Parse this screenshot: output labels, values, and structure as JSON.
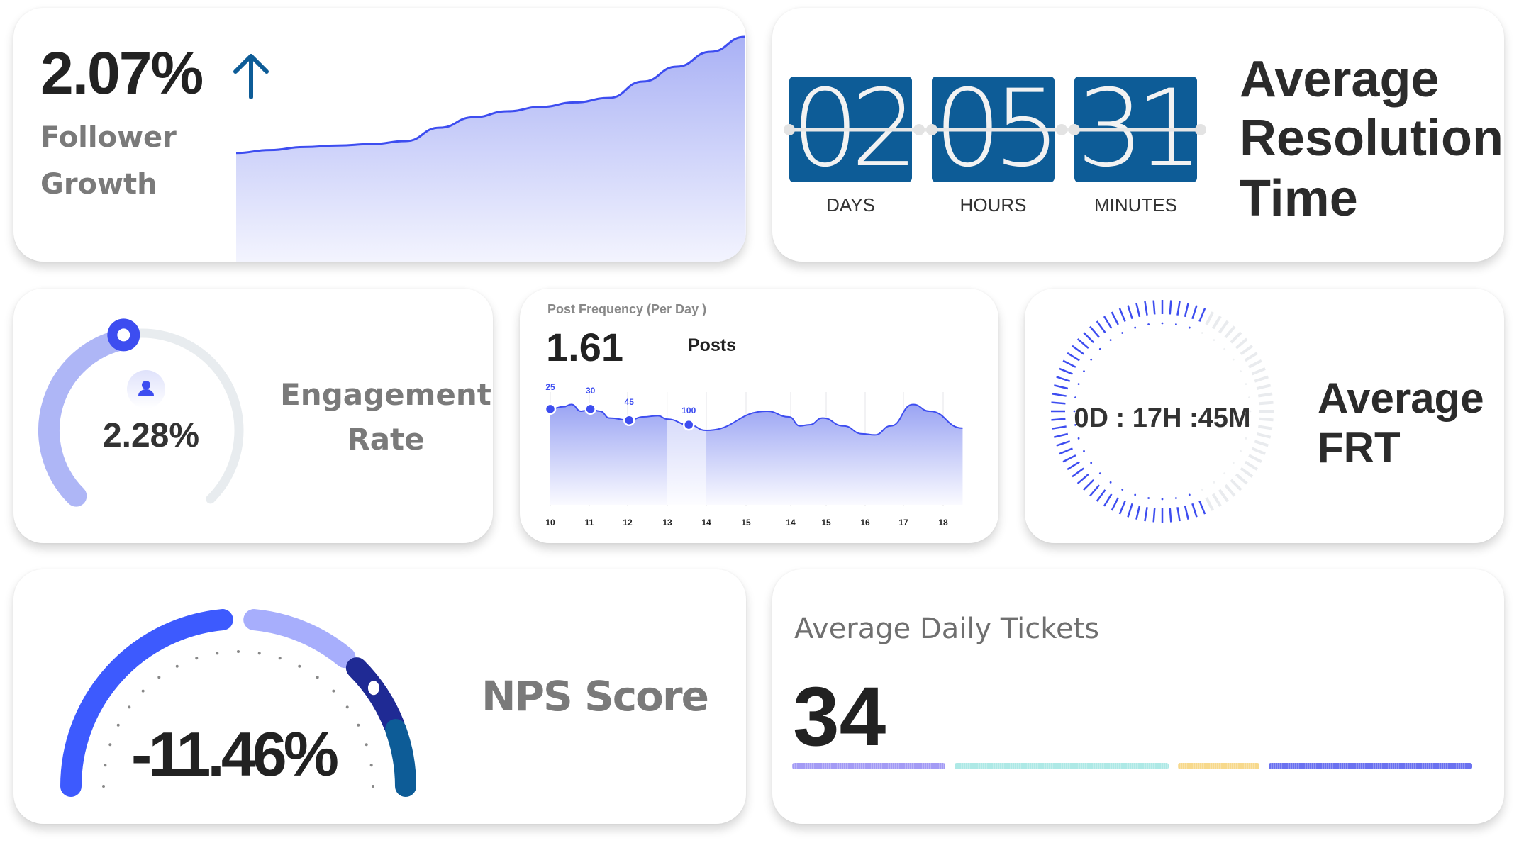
{
  "follower_growth": {
    "value": "2.07%",
    "trend_icon": "arrow-up-icon",
    "label_line1": "Follower",
    "label_line2": "Growth",
    "color": "#3d4df0",
    "trend": [
      12,
      14,
      16,
      17,
      18,
      20,
      29,
      36,
      40,
      43,
      46,
      49,
      60,
      70,
      80,
      90
    ]
  },
  "resolution_time": {
    "title_lines": [
      "Average",
      "Resolution",
      "Time"
    ],
    "units": [
      {
        "value": "02",
        "label": "DAYS"
      },
      {
        "value": "05",
        "label": "HOURS"
      },
      {
        "value": "31",
        "label": "MINUTES"
      }
    ],
    "box_color": "#0d5c97"
  },
  "engagement": {
    "value": "2.28%",
    "label_line1": "Engagement",
    "label_line2": "Rate",
    "icon": "user-icon",
    "progress": 0.46,
    "color": "#3d4df0"
  },
  "post_frequency": {
    "title": "Post Frequency (Per Day )",
    "value": "1.61",
    "unit": "Posts",
    "chart_data": {
      "type": "area",
      "x_tick_labels": [
        "10",
        "11",
        "12",
        "13",
        "14",
        "15",
        "14",
        "15",
        "16",
        "17",
        "18"
      ],
      "series": [
        {
          "x": [
            0,
            0.34,
            0.54,
            0.79,
            1.03,
            1.28,
            1.53,
            2.04,
            2.39,
            2.76,
            3.0,
            3.55,
            3.99,
            5.47,
            5.96,
            6.26,
            6.53,
            6.9,
            7.44,
            7.93,
            8.25,
            8.67,
            9.24,
            9.66,
            10.49
          ],
          "y": [
            85,
            87,
            89,
            83,
            85,
            83,
            77,
            75,
            78,
            79,
            76,
            71,
            66,
            83,
            78,
            70,
            71,
            77,
            70,
            63,
            62,
            70,
            89,
            83,
            68
          ]
        }
      ],
      "annotations": [
        {
          "x": 0,
          "y": 85,
          "label": "25"
        },
        {
          "x": 1.03,
          "y": 85,
          "label": "30"
        },
        {
          "x": 2.04,
          "y": 75,
          "label": "45"
        },
        {
          "x": 3.55,
          "y": 71,
          "label": "100"
        }
      ],
      "highlight_range": [
        3,
        4
      ],
      "ylim": [
        0,
        100
      ],
      "grid": true,
      "color": "#3d4df0"
    }
  },
  "frt": {
    "value": "0D : 17H :45M",
    "title_line1": "Average",
    "title_line2": "FRT",
    "progress": 0.64,
    "color": "#3d4df0"
  },
  "nps": {
    "value": "-11.46%",
    "label": "NPS Score",
    "segments": [
      {
        "from": 0,
        "to": 0.47,
        "color": "#3d5afe"
      },
      {
        "from": 0.53,
        "to": 0.72,
        "color": "#a7aefc"
      },
      {
        "from": 0.75,
        "to": 0.88,
        "color": "#1f2a94"
      },
      {
        "from": 0.89,
        "to": 1.0,
        "color": "#0d5c97"
      }
    ],
    "marker": 0.8
  },
  "daily_tickets": {
    "title": "Average Daily Tickets",
    "value": "34",
    "segments": [
      {
        "share": 0.235,
        "color": "#a39bf5"
      },
      {
        "share": 0.328,
        "color": "#aee9e6"
      },
      {
        "share": 0.125,
        "color": "#f7d98c"
      },
      {
        "share": 0.312,
        "color": "#6b72f0"
      }
    ]
  }
}
